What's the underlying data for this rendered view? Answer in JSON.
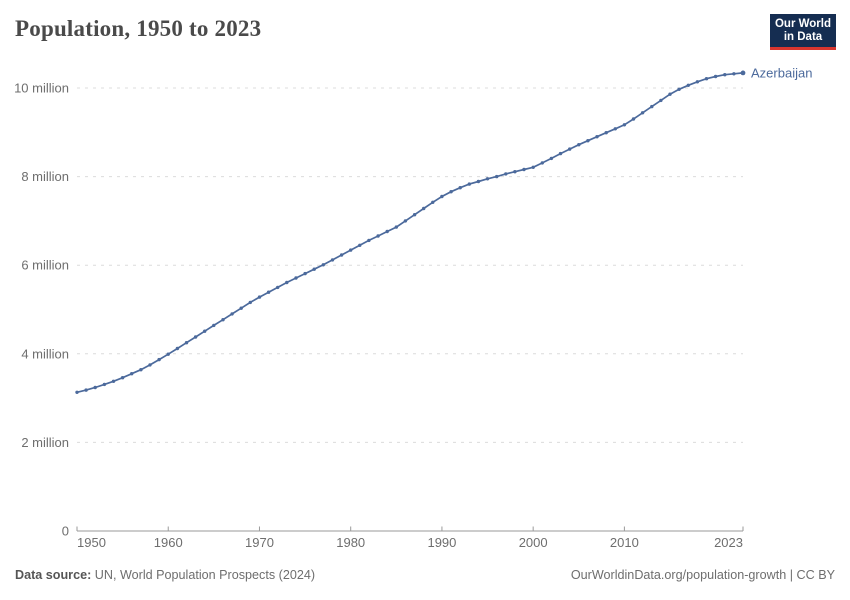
{
  "header": {
    "title": "Population, 1950 to 2023"
  },
  "logo": {
    "line1": "Our World",
    "line2": "in Data",
    "bg_color": "#152D51",
    "accent_color": "#D8352E"
  },
  "footer": {
    "source_label": "Data source:",
    "source_text": " UN, World Population Prospects (2024)",
    "right_text": "OurWorldinData.org/population-growth | CC BY"
  },
  "chart_data": {
    "type": "line",
    "title": "Population, 1950 to 2023",
    "entity_label": "Azerbaijan",
    "line_color": "#4C6A9C",
    "grid_color": "#dcdcdc",
    "axis_color": "#9a9a9a",
    "tick_label_color": "#6e6e6e",
    "unit": "million",
    "ylim": [
      0,
      10.6
    ],
    "grid": "horizontal-dashed",
    "legend_position": "end-of-line",
    "yticks": [
      {
        "value": 0,
        "label": "0"
      },
      {
        "value": 2,
        "label": "2 million"
      },
      {
        "value": 4,
        "label": "4 million"
      },
      {
        "value": 6,
        "label": "6 million"
      },
      {
        "value": 8,
        "label": "8 million"
      },
      {
        "value": 10,
        "label": "10 million"
      }
    ],
    "xticks": [
      1950,
      1960,
      1970,
      1980,
      1990,
      2000,
      2010,
      2023
    ],
    "x": [
      1950,
      1951,
      1952,
      1953,
      1954,
      1955,
      1956,
      1957,
      1958,
      1959,
      1960,
      1961,
      1962,
      1963,
      1964,
      1965,
      1966,
      1967,
      1968,
      1969,
      1970,
      1971,
      1972,
      1973,
      1974,
      1975,
      1976,
      1977,
      1978,
      1979,
      1980,
      1981,
      1982,
      1983,
      1984,
      1985,
      1986,
      1987,
      1988,
      1989,
      1990,
      1991,
      1992,
      1993,
      1994,
      1995,
      1996,
      1997,
      1998,
      1999,
      2000,
      2001,
      2002,
      2003,
      2004,
      2005,
      2006,
      2007,
      2008,
      2009,
      2010,
      2011,
      2012,
      2013,
      2014,
      2015,
      2016,
      2017,
      2018,
      2019,
      2020,
      2021,
      2022,
      2023
    ],
    "values_millions": [
      3.13,
      3.18,
      3.24,
      3.31,
      3.38,
      3.46,
      3.55,
      3.64,
      3.75,
      3.87,
      3.99,
      4.12,
      4.25,
      4.38,
      4.51,
      4.64,
      4.77,
      4.9,
      5.03,
      5.16,
      5.28,
      5.39,
      5.5,
      5.61,
      5.71,
      5.81,
      5.91,
      6.01,
      6.12,
      6.23,
      6.34,
      6.45,
      6.56,
      6.66,
      6.76,
      6.86,
      7.0,
      7.14,
      7.28,
      7.42,
      7.55,
      7.66,
      7.75,
      7.83,
      7.89,
      7.95,
      8.0,
      8.06,
      8.11,
      8.16,
      8.21,
      8.31,
      8.41,
      8.52,
      8.62,
      8.72,
      8.81,
      8.9,
      8.99,
      9.08,
      9.17,
      9.3,
      9.44,
      9.58,
      9.72,
      9.86,
      9.97,
      10.06,
      10.14,
      10.21,
      10.26,
      10.3,
      10.32,
      10.34
    ]
  }
}
